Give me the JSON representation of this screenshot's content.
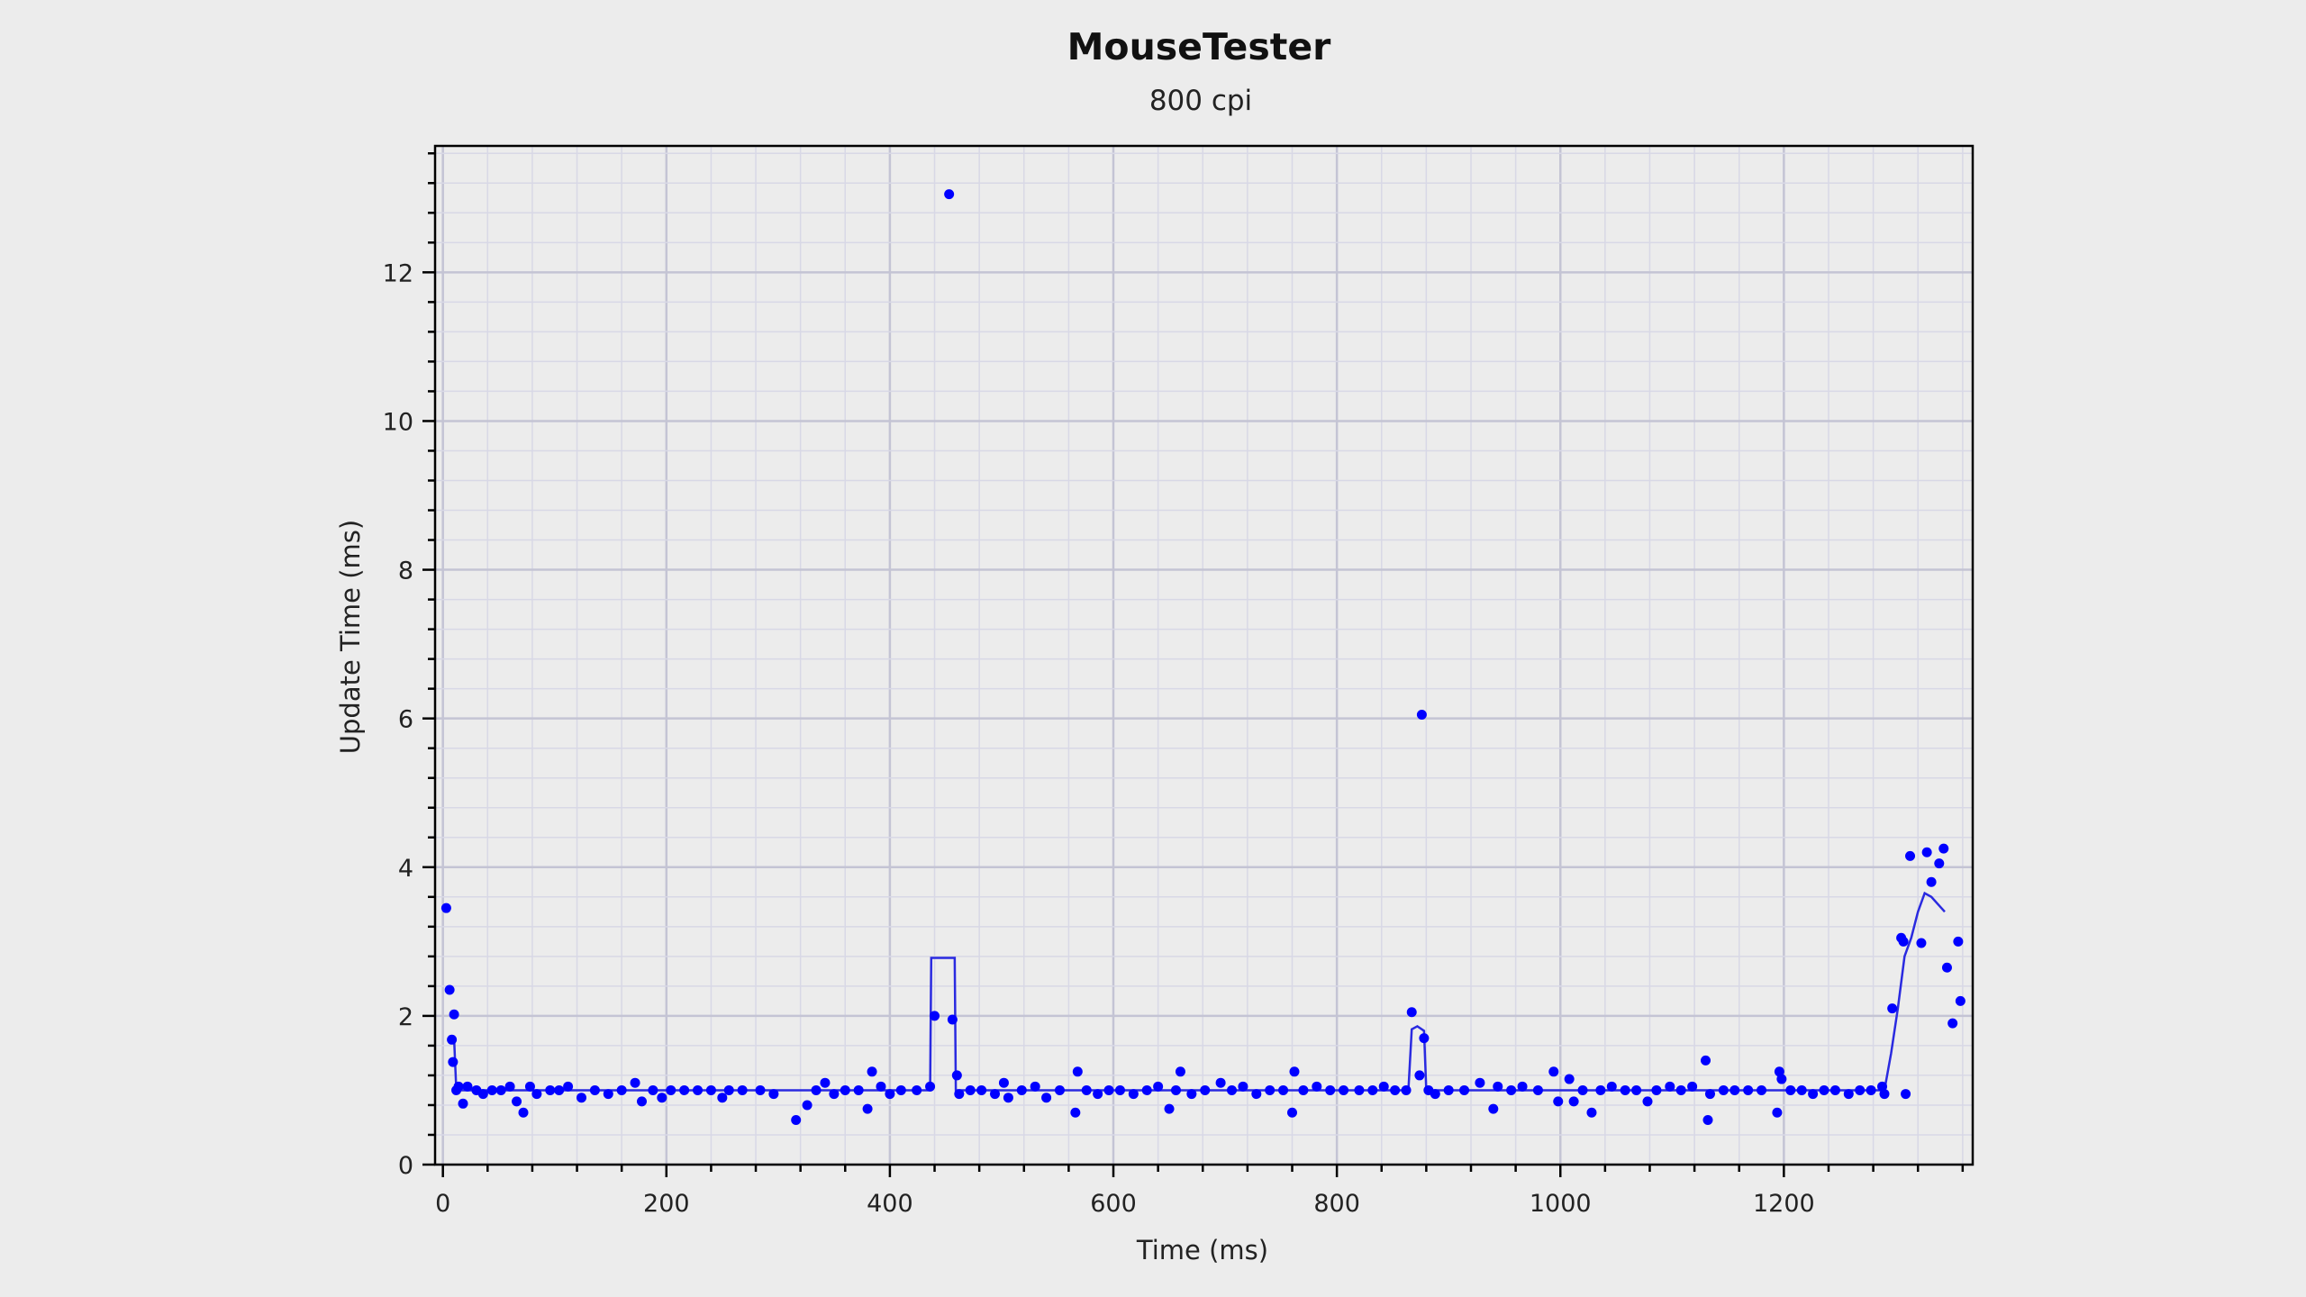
{
  "chart_data": {
    "type": "scatter",
    "title": "MouseTester",
    "subtitle": "800 cpi",
    "xlabel": "Time (ms)",
    "ylabel": "Update Time (ms)",
    "xlim": [
      -7,
      1369
    ],
    "ylim": [
      0,
      13.7
    ],
    "xticks": [
      0,
      200,
      400,
      600,
      800,
      1000,
      1200
    ],
    "yticks": [
      0,
      2,
      4,
      6,
      8,
      10,
      12
    ],
    "x_minor_step": 40,
    "y_minor_step": 0.4,
    "grid": true,
    "colors": {
      "points": "#0000ff",
      "line": "#2a2ae0",
      "background": "#ececec",
      "major_grid": "#c4c4d4",
      "minor_grid": "#d8d8e6"
    },
    "series": [
      {
        "kind": "points",
        "values": [
          [
            3,
            3.45
          ],
          [
            6,
            2.35
          ],
          [
            8,
            1.68
          ],
          [
            9,
            1.38
          ],
          [
            10,
            2.02
          ],
          [
            12,
            1.0
          ],
          [
            14,
            1.05
          ],
          [
            18,
            0.82
          ],
          [
            22,
            1.05
          ],
          [
            30,
            1.0
          ],
          [
            36,
            0.95
          ],
          [
            44,
            1.0
          ],
          [
            52,
            1.0
          ],
          [
            60,
            1.05
          ],
          [
            66,
            0.85
          ],
          [
            72,
            0.7
          ],
          [
            78,
            1.05
          ],
          [
            84,
            0.95
          ],
          [
            96,
            1.0
          ],
          [
            104,
            1.0
          ],
          [
            112,
            1.05
          ],
          [
            124,
            0.9
          ],
          [
            136,
            1.0
          ],
          [
            148,
            0.95
          ],
          [
            160,
            1.0
          ],
          [
            172,
            1.1
          ],
          [
            178,
            0.85
          ],
          [
            188,
            1.0
          ],
          [
            196,
            0.9
          ],
          [
            204,
            1.0
          ],
          [
            216,
            1.0
          ],
          [
            228,
            1.0
          ],
          [
            240,
            1.0
          ],
          [
            250,
            0.9
          ],
          [
            256,
            1.0
          ],
          [
            268,
            1.0
          ],
          [
            284,
            1.0
          ],
          [
            296,
            0.95
          ],
          [
            316,
            0.6
          ],
          [
            326,
            0.8
          ],
          [
            334,
            1.0
          ],
          [
            342,
            1.1
          ],
          [
            350,
            0.95
          ],
          [
            360,
            1.0
          ],
          [
            372,
            1.0
          ],
          [
            380,
            0.75
          ],
          [
            384,
            1.25
          ],
          [
            392,
            1.05
          ],
          [
            400,
            0.95
          ],
          [
            410,
            1.0
          ],
          [
            424,
            1.0
          ],
          [
            436,
            1.05
          ],
          [
            440,
            2.0
          ],
          [
            453,
            13.05
          ],
          [
            456,
            1.95
          ],
          [
            460,
            1.2
          ],
          [
            462,
            0.95
          ],
          [
            472,
            1.0
          ],
          [
            482,
            1.0
          ],
          [
            494,
            0.95
          ],
          [
            502,
            1.1
          ],
          [
            506,
            0.9
          ],
          [
            518,
            1.0
          ],
          [
            530,
            1.05
          ],
          [
            540,
            0.9
          ],
          [
            552,
            1.0
          ],
          [
            566,
            0.7
          ],
          [
            568,
            1.25
          ],
          [
            576,
            1.0
          ],
          [
            586,
            0.95
          ],
          [
            596,
            1.0
          ],
          [
            606,
            1.0
          ],
          [
            618,
            0.95
          ],
          [
            630,
            1.0
          ],
          [
            640,
            1.05
          ],
          [
            650,
            0.75
          ],
          [
            656,
            1.0
          ],
          [
            660,
            1.25
          ],
          [
            670,
            0.95
          ],
          [
            682,
            1.0
          ],
          [
            696,
            1.1
          ],
          [
            706,
            1.0
          ],
          [
            716,
            1.05
          ],
          [
            728,
            0.95
          ],
          [
            740,
            1.0
          ],
          [
            752,
            1.0
          ],
          [
            760,
            0.7
          ],
          [
            762,
            1.25
          ],
          [
            770,
            1.0
          ],
          [
            782,
            1.05
          ],
          [
            794,
            1.0
          ],
          [
            806,
            1.0
          ],
          [
            820,
            1.0
          ],
          [
            832,
            1.0
          ],
          [
            842,
            1.05
          ],
          [
            852,
            1.0
          ],
          [
            862,
            1.0
          ],
          [
            867,
            2.05
          ],
          [
            874,
            1.2
          ],
          [
            876,
            6.05
          ],
          [
            878,
            1.7
          ],
          [
            882,
            1.0
          ],
          [
            888,
            0.95
          ],
          [
            900,
            1.0
          ],
          [
            914,
            1.0
          ],
          [
            928,
            1.1
          ],
          [
            940,
            0.75
          ],
          [
            944,
            1.05
          ],
          [
            956,
            1.0
          ],
          [
            966,
            1.05
          ],
          [
            980,
            1.0
          ],
          [
            994,
            1.25
          ],
          [
            998,
            0.85
          ],
          [
            1008,
            1.15
          ],
          [
            1012,
            0.85
          ],
          [
            1020,
            1.0
          ],
          [
            1028,
            0.7
          ],
          [
            1036,
            1.0
          ],
          [
            1046,
            1.05
          ],
          [
            1058,
            1.0
          ],
          [
            1068,
            1.0
          ],
          [
            1078,
            0.85
          ],
          [
            1086,
            1.0
          ],
          [
            1098,
            1.05
          ],
          [
            1108,
            1.0
          ],
          [
            1118,
            1.05
          ],
          [
            1130,
            1.4
          ],
          [
            1132,
            0.6
          ],
          [
            1134,
            0.95
          ],
          [
            1146,
            1.0
          ],
          [
            1156,
            1.0
          ],
          [
            1168,
            1.0
          ],
          [
            1180,
            1.0
          ],
          [
            1194,
            0.7
          ],
          [
            1196,
            1.25
          ],
          [
            1198,
            1.15
          ],
          [
            1206,
            1.0
          ],
          [
            1216,
            1.0
          ],
          [
            1226,
            0.95
          ],
          [
            1236,
            1.0
          ],
          [
            1246,
            1.0
          ],
          [
            1258,
            0.95
          ],
          [
            1268,
            1.0
          ],
          [
            1278,
            1.0
          ],
          [
            1288,
            1.05
          ],
          [
            1290,
            0.95
          ],
          [
            1297,
            2.1
          ],
          [
            1305,
            3.05
          ],
          [
            1307,
            3.0
          ],
          [
            1309,
            0.95
          ],
          [
            1313,
            4.15
          ],
          [
            1323,
            2.98
          ],
          [
            1328,
            4.2
          ],
          [
            1332,
            3.8
          ],
          [
            1339,
            4.05
          ],
          [
            1343,
            4.25
          ],
          [
            1346,
            2.65
          ],
          [
            1351,
            1.9
          ],
          [
            1356,
            3.0
          ],
          [
            1358,
            2.2
          ]
        ]
      },
      {
        "kind": "line",
        "values": [
          [
            8,
            1.7
          ],
          [
            10,
            1.7
          ],
          [
            12,
            1.0
          ],
          [
            436,
            1.0
          ],
          [
            437,
            2.78
          ],
          [
            458,
            2.78
          ],
          [
            459,
            1.0
          ],
          [
            864,
            1.0
          ],
          [
            867,
            1.82
          ],
          [
            872,
            1.86
          ],
          [
            878,
            1.8
          ],
          [
            880,
            1.0
          ],
          [
            1290,
            1.0
          ],
          [
            1296,
            1.5
          ],
          [
            1302,
            2.1
          ],
          [
            1308,
            2.8
          ],
          [
            1314,
            3.05
          ],
          [
            1320,
            3.4
          ],
          [
            1326,
            3.65
          ],
          [
            1332,
            3.6
          ],
          [
            1338,
            3.5
          ],
          [
            1344,
            3.4
          ]
        ]
      }
    ]
  }
}
